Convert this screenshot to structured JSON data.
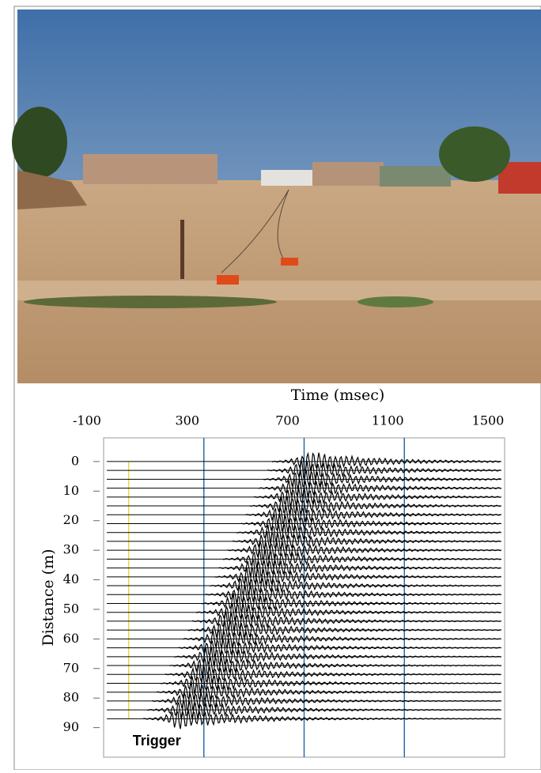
{
  "chart_data": {
    "type": "seismogram",
    "xlabel": "Time (msec)",
    "ylabel": "Distance (m)",
    "annotation": "Trigger",
    "xlim": [
      -100,
      1500
    ],
    "xticks": [
      -100,
      300,
      700,
      1100,
      1500
    ],
    "ylim": [
      -8,
      100
    ],
    "yticks": [
      0,
      10,
      20,
      30,
      40,
      50,
      60,
      70,
      80,
      90
    ],
    "grid": true,
    "grid_color": "#2a6fa8",
    "trigger": 0,
    "trigger_color": "#e8d84a",
    "trace_color": "#000000",
    "distances": [
      0,
      3,
      6,
      9,
      12,
      15,
      18,
      21,
      24,
      27,
      30,
      33,
      36,
      39,
      42,
      45,
      48,
      51,
      54,
      57,
      60,
      63,
      66,
      69,
      72,
      75,
      78,
      81,
      84,
      87
    ],
    "arrivals": [
      700,
      682,
      665,
      647,
      629,
      612,
      594,
      577,
      559,
      541,
      523,
      505,
      488,
      470,
      452,
      434,
      416,
      398,
      381,
      363,
      345,
      327,
      310,
      292,
      274,
      256,
      239,
      221,
      203,
      186
    ]
  }
}
